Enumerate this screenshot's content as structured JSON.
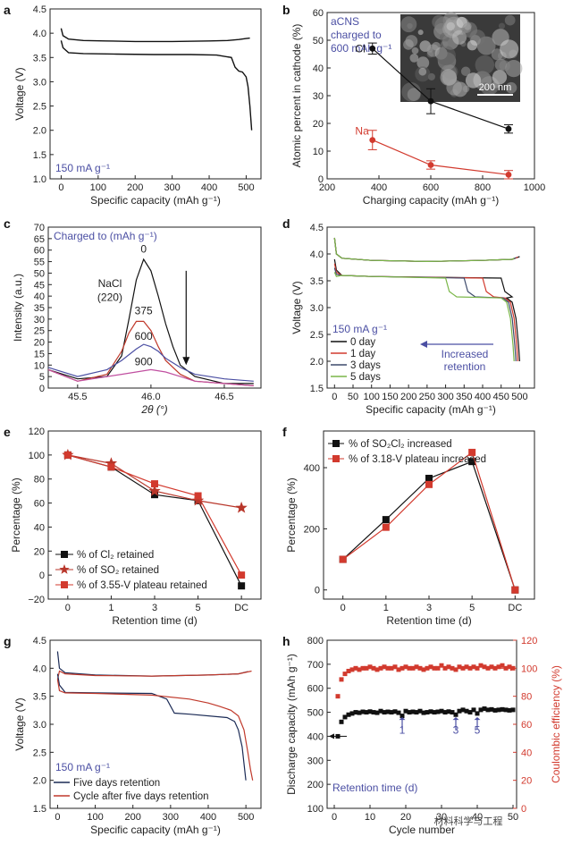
{
  "chart_data": [
    {
      "panel": "a",
      "type": "line",
      "xlabel": "Specific capacity (mAh g⁻¹)",
      "ylabel": "Voltage (V)",
      "xlim": [
        -30,
        540
      ],
      "ylim": [
        1.0,
        4.5
      ],
      "xticks": [
        "0",
        "100",
        "200",
        "300",
        "400",
        "500"
      ],
      "yticks": [
        "1.0",
        "1.5",
        "2.0",
        "2.5",
        "3.0",
        "3.5",
        "4.0",
        "4.5"
      ],
      "annotation": "150 mA g⁻¹",
      "series": [
        {
          "role": "charge",
          "x": [
            0,
            5,
            20,
            60,
            120,
            200,
            300,
            400,
            450,
            480,
            500,
            510
          ],
          "y": [
            4.1,
            3.95,
            3.88,
            3.85,
            3.84,
            3.83,
            3.83,
            3.84,
            3.85,
            3.87,
            3.89,
            3.9
          ]
        },
        {
          "role": "discharge",
          "x": [
            0,
            5,
            20,
            60,
            150,
            250,
            350,
            420,
            460,
            470,
            480,
            490,
            500,
            505,
            510,
            515
          ],
          "y": [
            3.85,
            3.7,
            3.6,
            3.58,
            3.57,
            3.56,
            3.56,
            3.55,
            3.5,
            3.3,
            3.22,
            3.2,
            3.1,
            2.9,
            2.5,
            2.0
          ]
        }
      ]
    },
    {
      "panel": "b",
      "type": "scatter",
      "xlabel": "Charging capacity (mAh g⁻¹)",
      "ylabel": "Atomic percent in cathode (%)",
      "xlim": [
        200,
        1000
      ],
      "ylim": [
        0,
        60
      ],
      "xticks": [
        "200",
        "400",
        "600",
        "800",
        "1000"
      ],
      "yticks": [
        "0",
        "10",
        "20",
        "30",
        "40",
        "50",
        "60"
      ],
      "annotation": [
        "aCNS",
        "charged to",
        "600 mAh g⁻¹"
      ],
      "inset_scale": "200 nm",
      "series": [
        {
          "name": "Cl",
          "x": [
            375,
            600,
            900
          ],
          "y": [
            47,
            28,
            18
          ],
          "err": [
            2,
            4.5,
            1.5
          ]
        },
        {
          "name": "Na",
          "x": [
            375,
            600,
            900
          ],
          "y": [
            14,
            5,
            1.5
          ],
          "err": [
            3.5,
            1.5,
            1.5
          ]
        }
      ]
    },
    {
      "panel": "c",
      "type": "line",
      "xlabel": "2θ (°)",
      "ylabel": "Intensity (a.u.)",
      "xlim": [
        45.3,
        46.75
      ],
      "ylim": [
        0,
        70
      ],
      "xticks": [
        "45.5",
        "46.0",
        "46.5"
      ],
      "yticks": [
        "0",
        "5",
        "10",
        "15",
        "20",
        "25",
        "30",
        "35",
        "40",
        "45",
        "50",
        "55",
        "60",
        "65",
        "70"
      ],
      "annotation": "Charged to (mAh g⁻¹)",
      "peak_label": [
        "NaCl",
        "(220)"
      ],
      "series": [
        {
          "name": "0",
          "x": [
            45.3,
            45.5,
            45.7,
            45.8,
            45.85,
            45.9,
            45.95,
            46.0,
            46.05,
            46.1,
            46.15,
            46.2,
            46.3,
            46.5,
            46.7
          ],
          "y": [
            8,
            4,
            5,
            14,
            30,
            47,
            56,
            51,
            40,
            28,
            18,
            10,
            5,
            2,
            2
          ]
        },
        {
          "name": "375",
          "x": [
            45.3,
            45.5,
            45.7,
            45.8,
            45.85,
            45.9,
            45.95,
            46.0,
            46.05,
            46.1,
            46.2,
            46.3,
            46.5,
            46.7
          ],
          "y": [
            8,
            3,
            6,
            16,
            24,
            29,
            29,
            25,
            18,
            12,
            6,
            3,
            2,
            1
          ]
        },
        {
          "name": "600",
          "x": [
            45.3,
            45.5,
            45.7,
            45.8,
            45.9,
            45.95,
            46.0,
            46.05,
            46.1,
            46.2,
            46.3,
            46.5,
            46.7
          ],
          "y": [
            9,
            5,
            8,
            12,
            17,
            19,
            18,
            16,
            13,
            9,
            6,
            4,
            3
          ]
        },
        {
          "name": "900",
          "x": [
            45.3,
            45.5,
            45.7,
            45.8,
            45.9,
            46.0,
            46.1,
            46.2,
            46.3,
            46.5,
            46.7
          ],
          "y": [
            8,
            3,
            5,
            6,
            7,
            8,
            7,
            5,
            3,
            2,
            1
          ]
        }
      ]
    },
    {
      "panel": "d",
      "type": "line",
      "xlabel": "Specific capacity (mAh g⁻¹)",
      "ylabel": "Voltage (V)",
      "xlim": [
        -20,
        540
      ],
      "ylim": [
        1.5,
        4.5
      ],
      "xticks": [
        "0",
        "50",
        "100",
        "150",
        "200",
        "250",
        "300",
        "350",
        "400",
        "450",
        "500"
      ],
      "yticks": [
        "1.5",
        "2.0",
        "2.5",
        "3.0",
        "3.5",
        "4.0",
        "4.5"
      ],
      "annotation": [
        "Increased",
        "retention"
      ],
      "current": "150 mA g⁻¹",
      "colors": [
        "#111111",
        "#d23a2e",
        "#3d4a6b",
        "#7ab648"
      ],
      "series": [
        {
          "name": "0 day",
          "plateau_end": 450,
          "end": 500
        },
        {
          "name": "1 day",
          "plateau_end": 400,
          "end": 495
        },
        {
          "name": "3 days",
          "plateau_end": 350,
          "end": 490
        },
        {
          "name": "5 days",
          "plateau_end": 300,
          "end": 485
        }
      ]
    },
    {
      "panel": "e",
      "type": "line",
      "xlabel": "Retention time (d)",
      "ylabel": "Percentage (%)",
      "categories": [
        "0",
        "1",
        "3",
        "5",
        "DC"
      ],
      "ylim": [
        -20,
        120
      ],
      "yticks": [
        "−20",
        "0",
        "20",
        "40",
        "60",
        "80",
        "100",
        "120"
      ],
      "series": [
        {
          "name": "% of Cl₂ retained",
          "marker": "square",
          "color": "#111111",
          "values": [
            100,
            90,
            67,
            62,
            -9
          ]
        },
        {
          "name": "% of SO₂ retained",
          "marker": "star",
          "color": "#b8362a",
          "values": [
            100,
            93,
            70,
            62,
            56
          ]
        },
        {
          "name": "% of 3.55-V plateau retained",
          "marker": "square",
          "color": "#d23a2e",
          "values": [
            100,
            90,
            76,
            66,
            0
          ]
        }
      ]
    },
    {
      "panel": "f",
      "type": "line",
      "xlabel": "Retention time (d)",
      "ylabel": "Percentage (%)",
      "categories": [
        "0",
        "1",
        "3",
        "5",
        "DC"
      ],
      "ylim": [
        -30,
        520
      ],
      "yticks": [
        "0",
        "200",
        "400"
      ],
      "series": [
        {
          "name": "% of SO₂Cl₂ increased",
          "color": "#111111",
          "values": [
            100,
            230,
            365,
            420,
            0
          ]
        },
        {
          "name": "% of 3.18-V plateau increased",
          "color": "#d23a2e",
          "values": [
            100,
            205,
            345,
            450,
            0
          ]
        }
      ]
    },
    {
      "panel": "g",
      "type": "line",
      "xlabel": "Specific capacity (mAh g⁻¹)",
      "ylabel": "Voltage (V)",
      "xlim": [
        -20,
        540
      ],
      "ylim": [
        1.5,
        4.5
      ],
      "xticks": [
        "0",
        "100",
        "200",
        "300",
        "400",
        "500"
      ],
      "yticks": [
        "1.5",
        "2.0",
        "2.5",
        "3.0",
        "3.5",
        "4.0",
        "4.5"
      ],
      "current": "150 mA g⁻¹",
      "series": [
        {
          "name": "Five days retention",
          "color": "#1a2a55"
        },
        {
          "name": "Cycle after five days retention",
          "color": "#c0392b"
        }
      ]
    },
    {
      "panel": "h",
      "type": "scatter",
      "xlabel": "Cycle number",
      "ylabel": "Discharge capacity (mAh g⁻¹)",
      "ylabel_right": "Coulombic efficiency (%)",
      "xlim": [
        -2,
        51
      ],
      "ylim": [
        100,
        800
      ],
      "ylim_right": [
        0,
        120
      ],
      "xticks": [
        "0",
        "10",
        "20",
        "30",
        "40",
        "50"
      ],
      "yticks": [
        "100",
        "200",
        "300",
        "400",
        "500",
        "600",
        "700",
        "800"
      ],
      "yticks_right": [
        "0",
        "20",
        "40",
        "60",
        "80",
        "100",
        "120"
      ],
      "annotation": "Retention time (d)",
      "arrow_labels": [
        "1",
        "3",
        "5"
      ],
      "arrow_cycles": [
        19,
        34,
        40
      ],
      "discharge": {
        "x": [
          1,
          2,
          3,
          4,
          5,
          6,
          7,
          8,
          9,
          10,
          11,
          12,
          13,
          14,
          15,
          16,
          17,
          18,
          19,
          20,
          21,
          22,
          23,
          24,
          25,
          26,
          27,
          28,
          29,
          30,
          31,
          32,
          33,
          34,
          35,
          36,
          37,
          38,
          39,
          40,
          41,
          42,
          43,
          44,
          45,
          46,
          47,
          48,
          49,
          50
        ],
        "y": [
          400,
          460,
          480,
          490,
          495,
          500,
          498,
          502,
          500,
          503,
          500,
          498,
          505,
          500,
          502,
          500,
          503,
          498,
          485,
          505,
          500,
          502,
          500,
          505,
          498,
          500,
          503,
          500,
          502,
          505,
          500,
          503,
          500,
          490,
          505,
          510,
          505,
          500,
          510,
          495,
          510,
          515,
          510,
          512,
          508,
          510,
          512,
          510,
          508,
          510
        ]
      },
      "coulombic": {
        "x": [
          1,
          2,
          3,
          4,
          5,
          6,
          7,
          8,
          9,
          10,
          11,
          12,
          13,
          14,
          15,
          16,
          17,
          18,
          19,
          20,
          21,
          22,
          23,
          24,
          25,
          26,
          27,
          28,
          29,
          30,
          31,
          32,
          33,
          34,
          35,
          36,
          37,
          38,
          39,
          40,
          41,
          42,
          43,
          44,
          45,
          46,
          47,
          48,
          49,
          50
        ],
        "y": [
          80,
          92,
          96,
          98,
          99,
          100,
          99,
          100,
          100,
          101,
          100,
          99,
          100,
          101,
          100,
          100,
          101,
          99,
          100,
          101,
          100,
          100,
          101,
          100,
          99,
          100,
          101,
          100,
          100,
          102,
          100,
          101,
          100,
          99,
          101,
          100,
          101,
          100,
          101,
          100,
          102,
          101,
          100,
          101,
          100,
          101,
          102,
          100,
          101,
          100
        ]
      }
    }
  ],
  "watermark": "材料科学与工程"
}
